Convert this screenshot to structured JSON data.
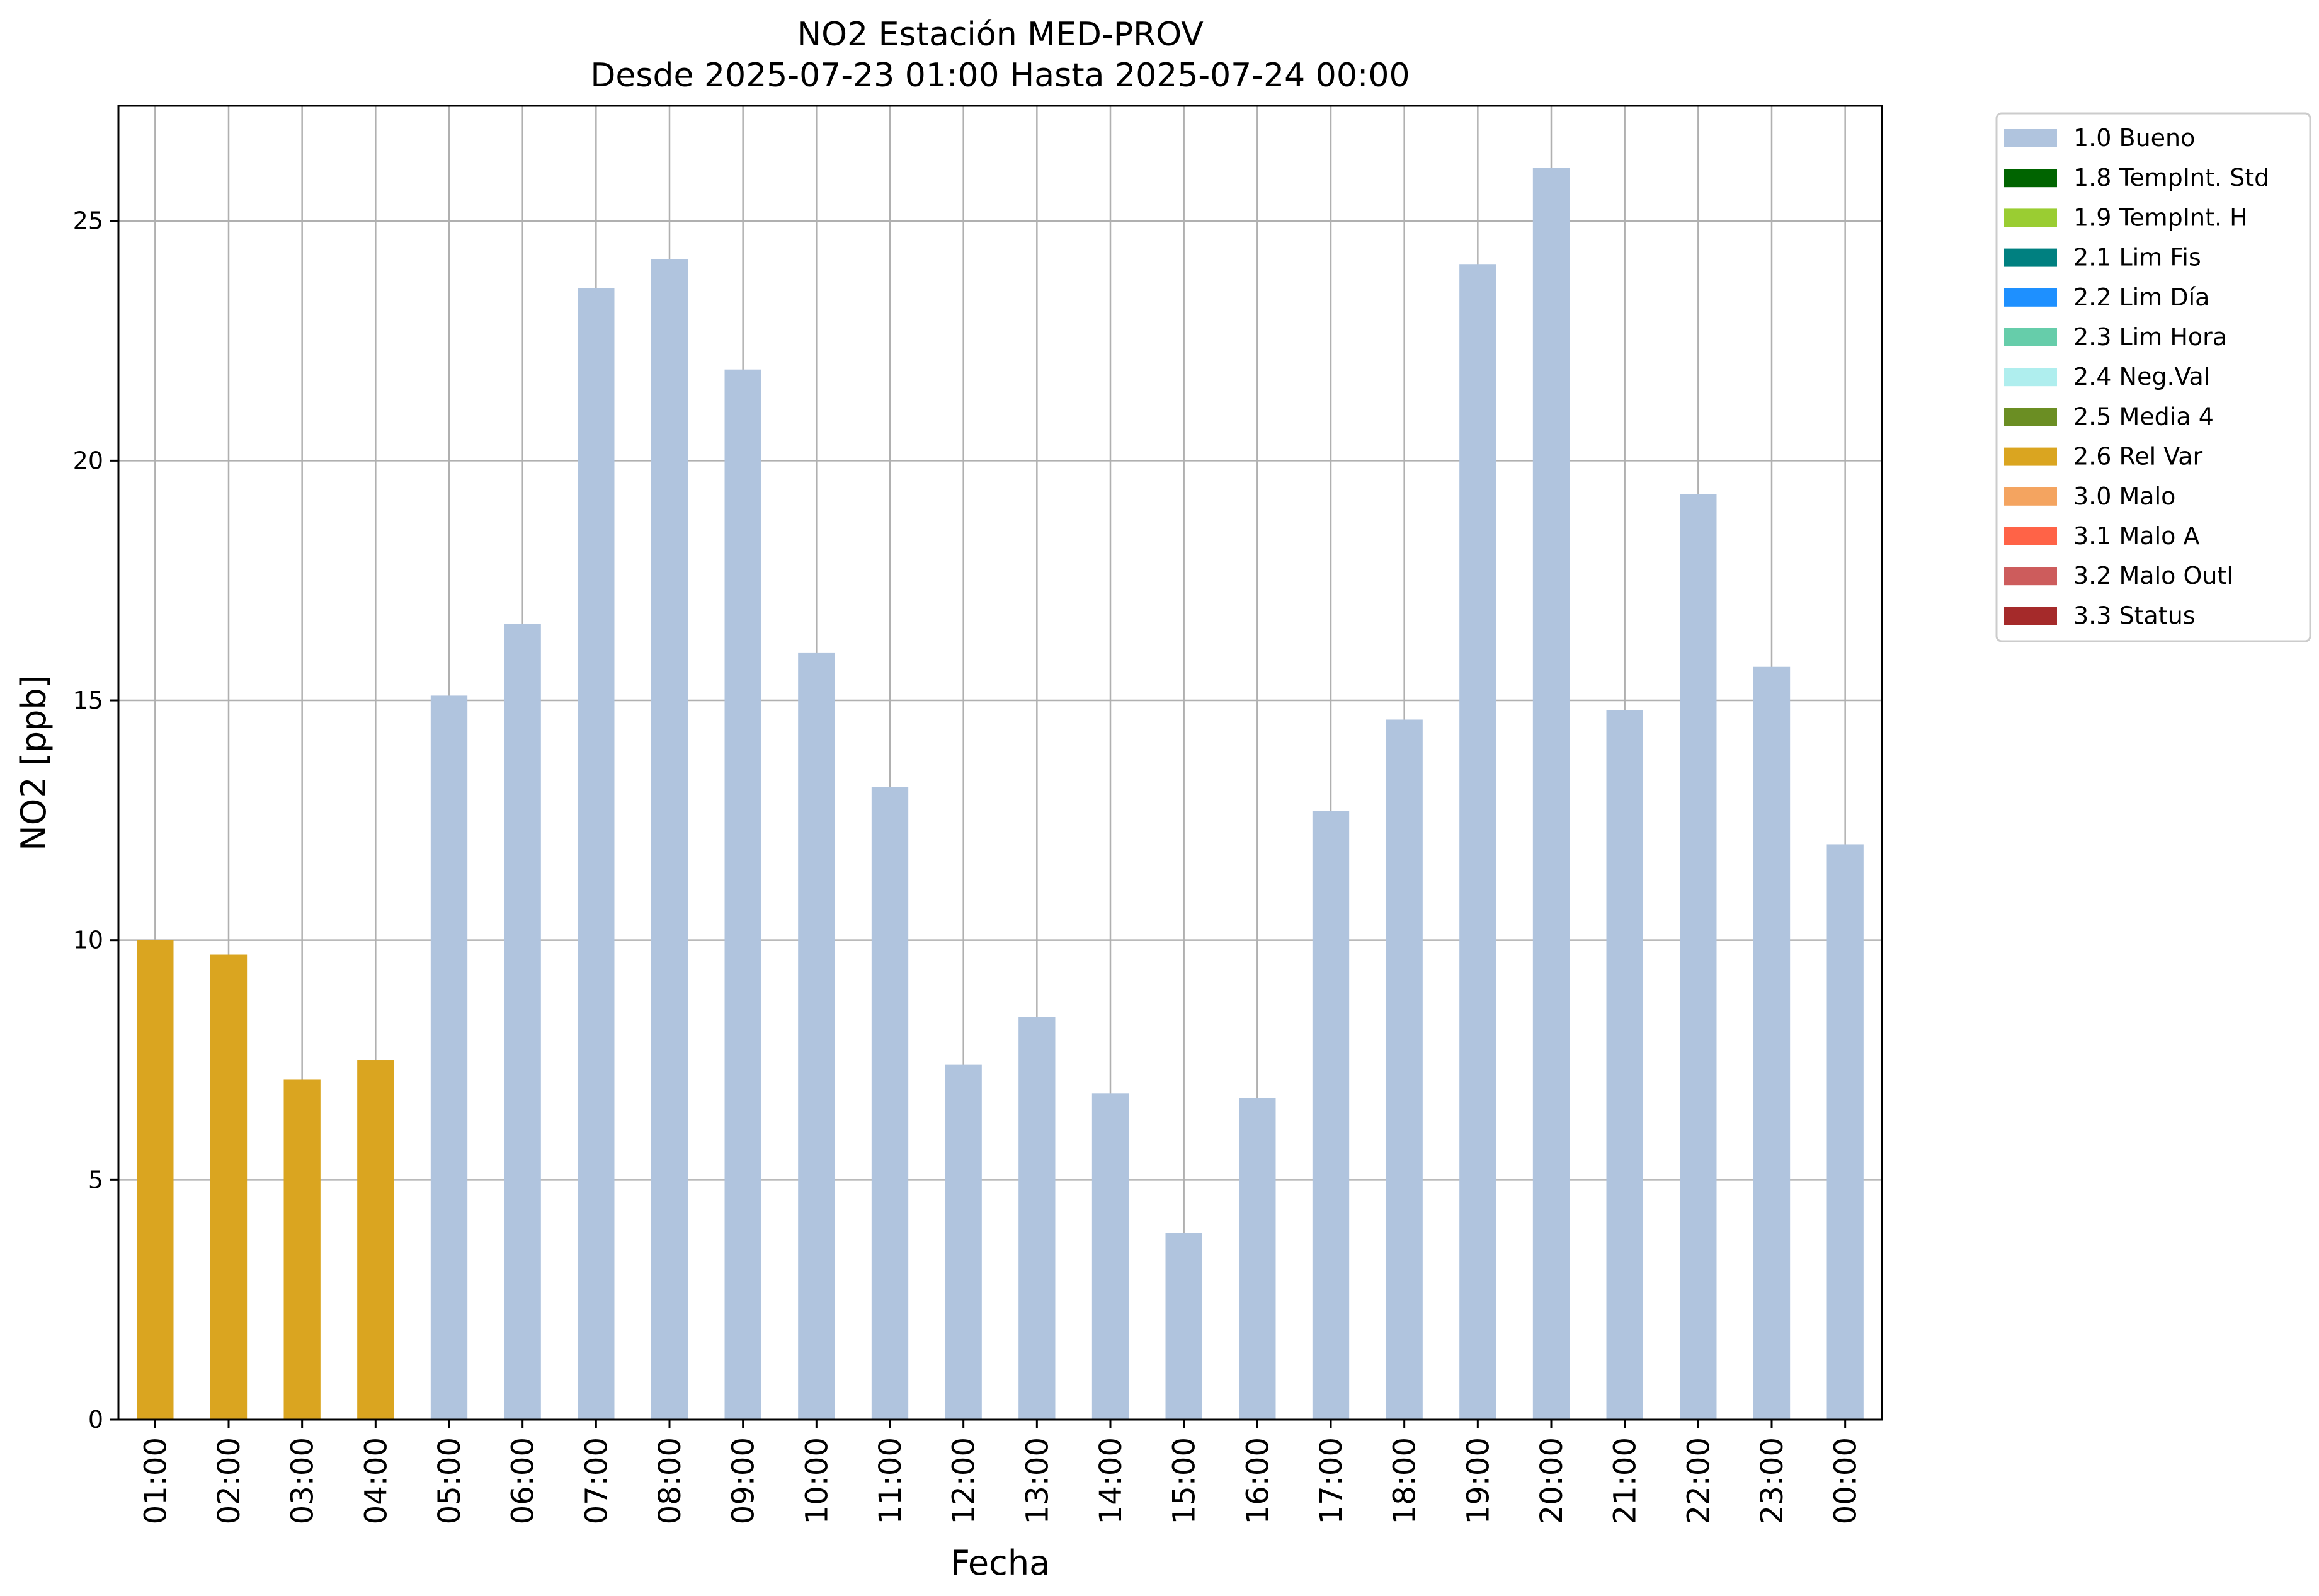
{
  "chart_data": {
    "type": "bar",
    "title": "NO2 Estación MED-PROV",
    "subtitle": "Desde 2025-07-23 01:00 Hasta 2025-07-24 00:00",
    "xlabel": "Fecha",
    "ylabel": "NO2 [ppb]",
    "ylim": [
      0,
      27.4
    ],
    "yticks": [
      0,
      5,
      10,
      15,
      20,
      25
    ],
    "grid": true,
    "legend_position": "outside-right-top",
    "categories": [
      "01:00",
      "02:00",
      "03:00",
      "04:00",
      "05:00",
      "06:00",
      "07:00",
      "08:00",
      "09:00",
      "10:00",
      "11:00",
      "12:00",
      "13:00",
      "14:00",
      "15:00",
      "16:00",
      "17:00",
      "18:00",
      "19:00",
      "20:00",
      "21:00",
      "22:00",
      "23:00",
      "00:00"
    ],
    "values": [
      10.0,
      9.7,
      7.1,
      7.5,
      15.1,
      16.6,
      23.6,
      24.2,
      21.9,
      16.0,
      13.2,
      7.4,
      8.4,
      6.8,
      3.9,
      6.7,
      12.7,
      14.6,
      24.1,
      26.1,
      14.8,
      19.3,
      15.7,
      12.0
    ],
    "flags": [
      "2.6 Rel Var",
      "2.6 Rel Var",
      "2.6 Rel Var",
      "2.6 Rel Var",
      "1.0 Bueno",
      "1.0 Bueno",
      "1.0 Bueno",
      "1.0 Bueno",
      "1.0 Bueno",
      "1.0 Bueno",
      "1.0 Bueno",
      "1.0 Bueno",
      "1.0 Bueno",
      "1.0 Bueno",
      "1.0 Bueno",
      "1.0 Bueno",
      "1.0 Bueno",
      "1.0 Bueno",
      "1.0 Bueno",
      "1.0 Bueno",
      "1.0 Bueno",
      "1.0 Bueno",
      "1.0 Bueno",
      "1.0 Bueno"
    ],
    "legend": [
      {
        "label": "1.0 Bueno",
        "color": "#b0c4de"
      },
      {
        "label": "1.8 TempInt. Std",
        "color": "#006400"
      },
      {
        "label": "1.9 TempInt. H",
        "color": "#9acd32"
      },
      {
        "label": "2.1 Lim Fis",
        "color": "#008080"
      },
      {
        "label": "2.2 Lim Día",
        "color": "#1e90ff"
      },
      {
        "label": "2.3 Lim Hora",
        "color": "#66cdaa"
      },
      {
        "label": "2.4 Neg.Val",
        "color": "#afeeee"
      },
      {
        "label": "2.5 Media 4",
        "color": "#6b8e23"
      },
      {
        "label": "2.6 Rel Var",
        "color": "#daa520"
      },
      {
        "label": "3.0 Malo",
        "color": "#f4a460"
      },
      {
        "label": "3.1 Malo A",
        "color": "#ff6347"
      },
      {
        "label": "3.2 Malo Outl",
        "color": "#cd5c5c"
      },
      {
        "label": "3.3 Status",
        "color": "#a52a2a"
      }
    ]
  }
}
